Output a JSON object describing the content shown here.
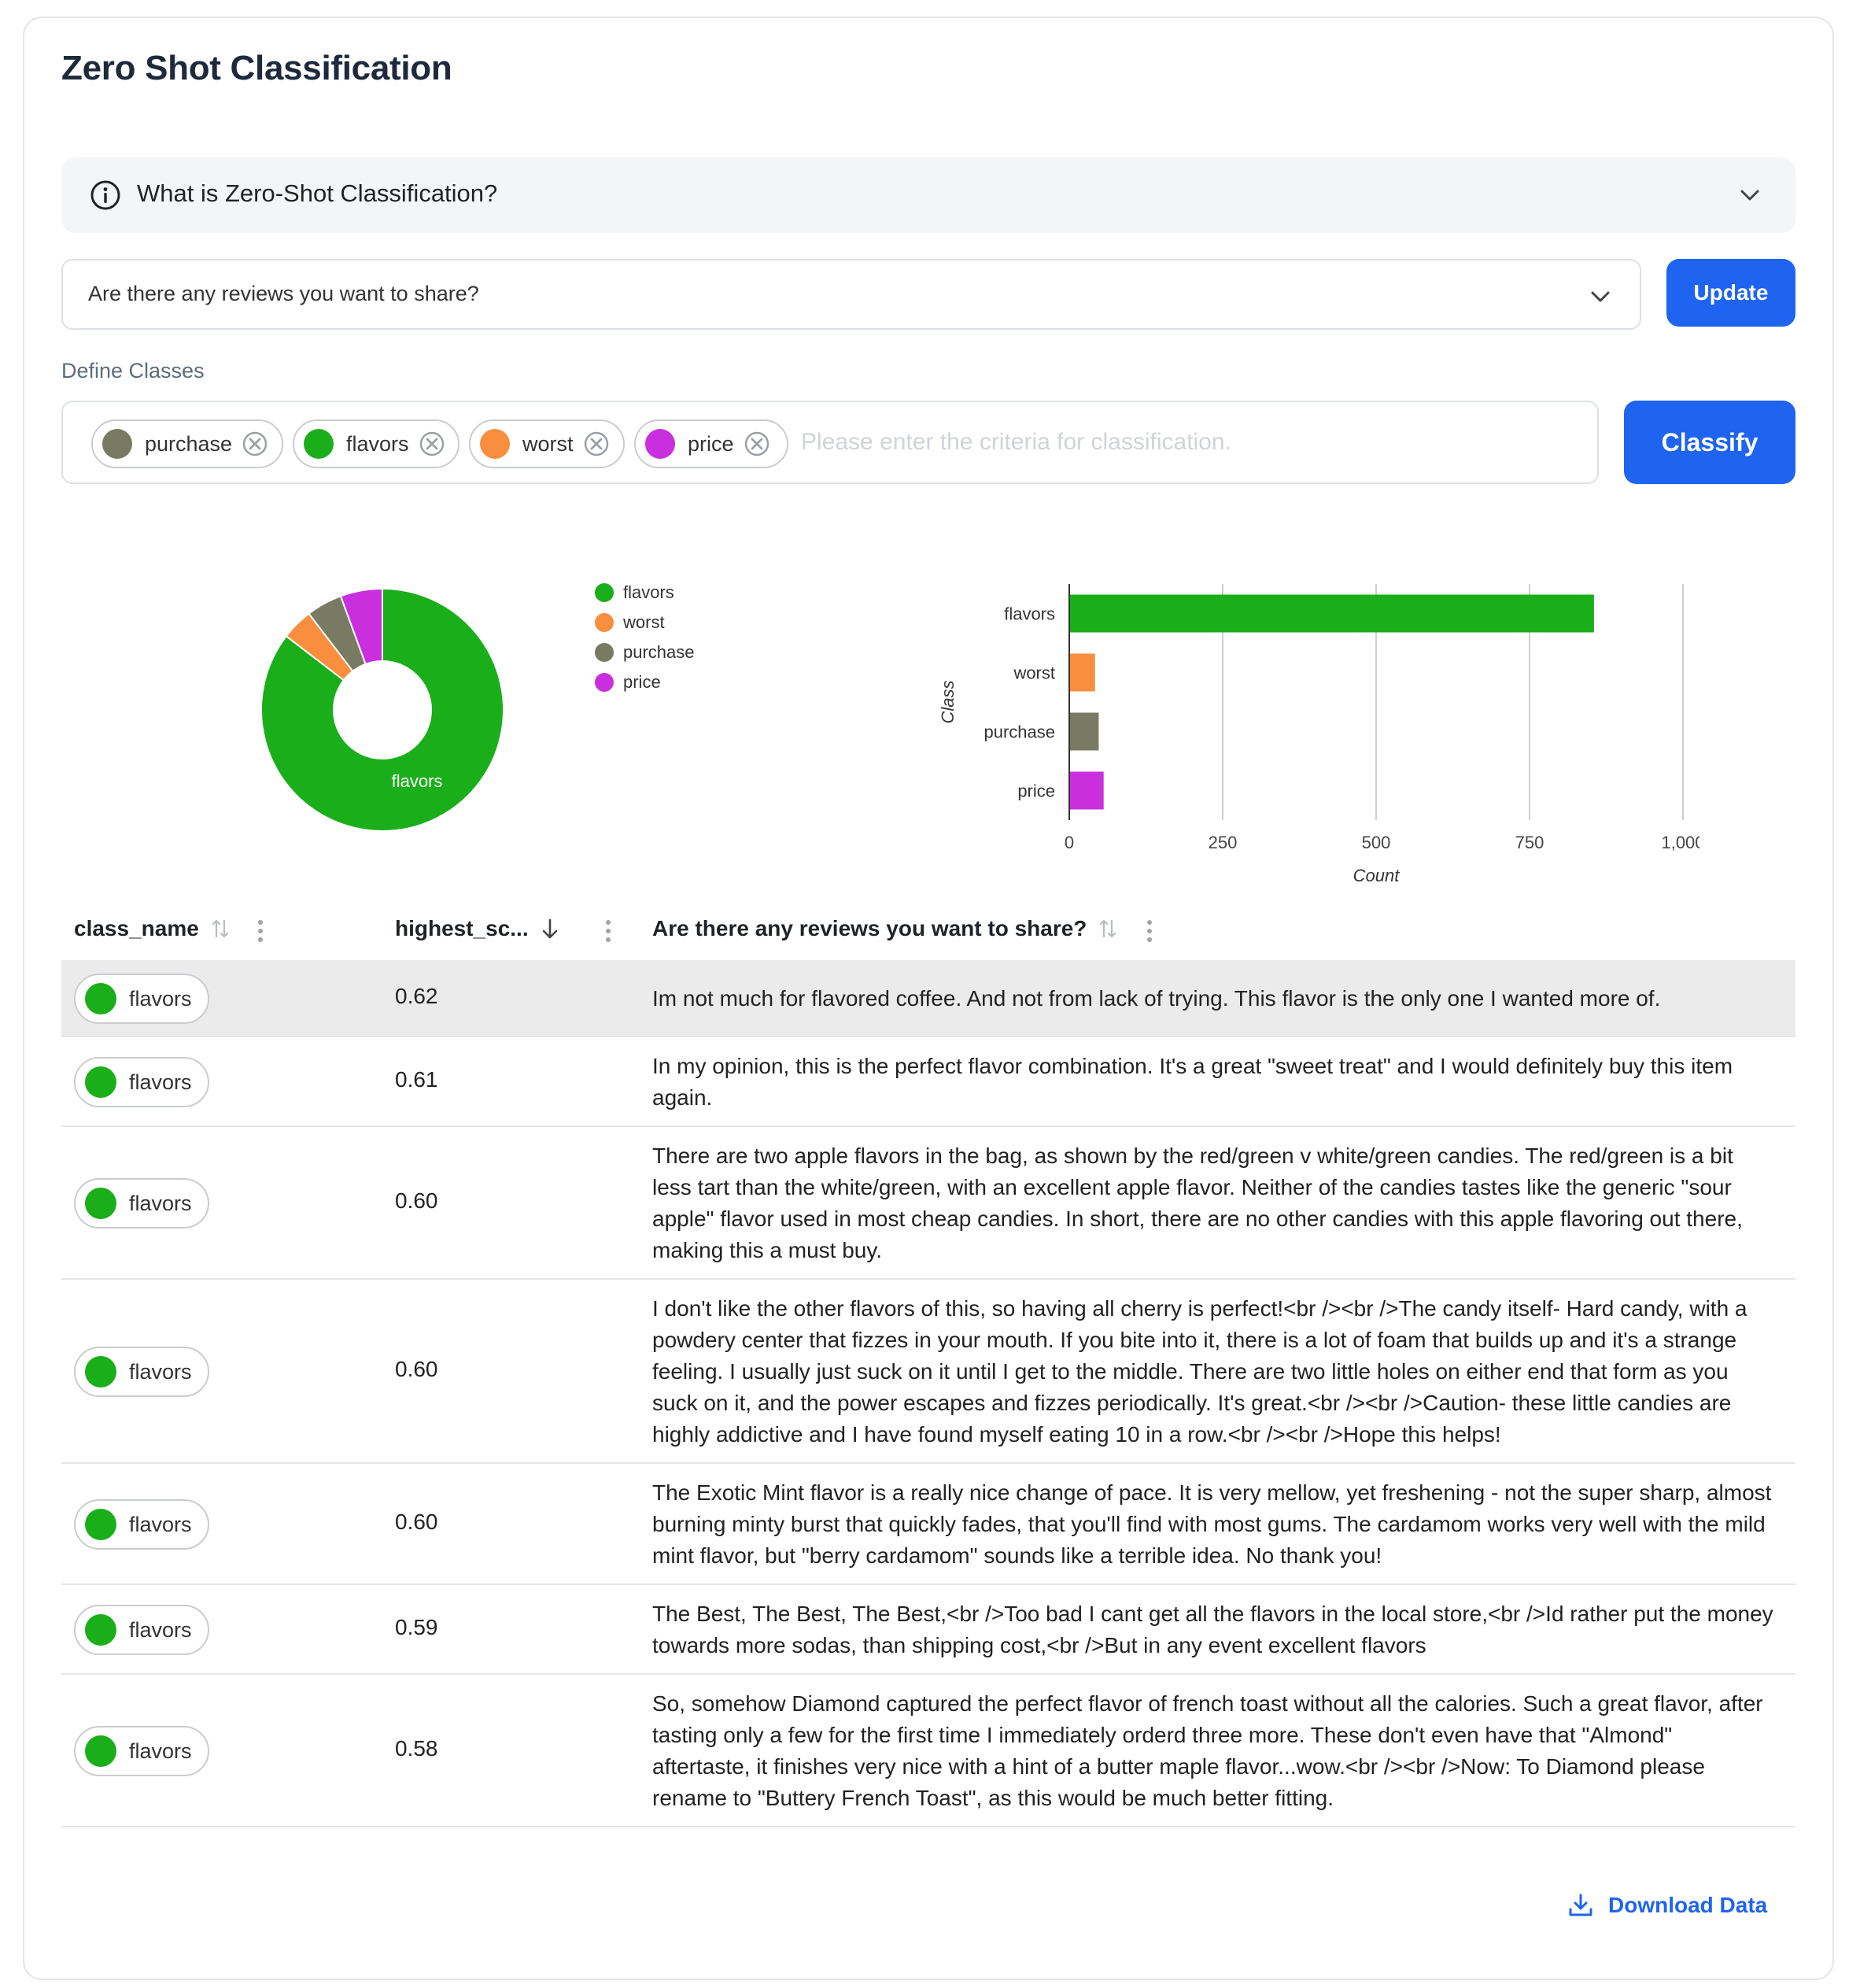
{
  "title": "Zero Shot Classification",
  "accordion": {
    "label": "What is Zero-Shot Classification?",
    "info_icon": "info-icon",
    "chevron_icon": "chevron-down-icon"
  },
  "question_select": {
    "value": "Are there any reviews you want to share?",
    "chevron_icon": "chevron-down-icon"
  },
  "update_button": {
    "label": "Update"
  },
  "define_classes": {
    "label": "Define Classes",
    "tags": [
      {
        "label": "purchase",
        "color": "#787a63"
      },
      {
        "label": "flavors",
        "color": "#1aaf1a"
      },
      {
        "label": "worst",
        "color": "#f98e3e"
      },
      {
        "label": "price",
        "color": "#c92fdc"
      }
    ],
    "placeholder": "Please enter the criteria for classification.",
    "close_icon": "close-circle-icon"
  },
  "classify_button": {
    "label": "Classify"
  },
  "chart_data": [
    {
      "type": "pie",
      "donut": true,
      "slice_label": "flavors",
      "legend_position": "right",
      "categories": [
        "flavors",
        "worst",
        "purchase",
        "price"
      ],
      "values": [
        855,
        42,
        48,
        56
      ],
      "colors": [
        "#1aaf1a",
        "#f98e3e",
        "#787a63",
        "#c92fdc"
      ]
    },
    {
      "type": "bar",
      "orientation": "horizontal",
      "categories": [
        "flavors",
        "worst",
        "purchase",
        "price"
      ],
      "values": [
        855,
        42,
        48,
        56
      ],
      "colors": [
        "#1aaf1a",
        "#f98e3e",
        "#787a63",
        "#c92fdc"
      ],
      "xlabel": "Count",
      "ylabel": "Class",
      "xticks": [
        "0",
        "250",
        "500",
        "750",
        "1,000"
      ],
      "xlim": [
        0,
        1000
      ],
      "grid": true
    }
  ],
  "table": {
    "columns": [
      {
        "label": "class_name",
        "sort_icon": "sort-icon",
        "menu_icon": "more-vertical-icon"
      },
      {
        "label": "highest_sc...",
        "sort_icon": "sort-descending-icon",
        "menu_icon": "more-vertical-icon"
      },
      {
        "label": "Are there any reviews you want to share?",
        "sort_icon": "sort-icon",
        "menu_icon": "more-vertical-icon"
      }
    ],
    "rows": [
      {
        "class_name": "flavors",
        "score": "0.62",
        "review": "Im not much for flavored coffee. And not from lack of trying. This flavor is the only one I wanted more of."
      },
      {
        "class_name": "flavors",
        "score": "0.61",
        "review": "In my opinion, this is the perfect flavor combination. It's a great \"sweet treat\" and I would definitely buy this item again."
      },
      {
        "class_name": "flavors",
        "score": "0.60",
        "review": "There are two apple flavors in the bag, as shown by the red/green v white/green candies. The red/green is a bit less tart than the white/green, with an excellent apple flavor. Neither of the candies tastes like the generic \"sour apple\" flavor used in most cheap candies. In short, there are no other candies with this apple flavoring out there, making this a must buy."
      },
      {
        "class_name": "flavors",
        "score": "0.60",
        "review": "I don't like the other flavors of this, so having all cherry is perfect!<br /><br />The candy itself- Hard candy, with a powdery center that fizzes in your mouth. If you bite into it, there is a lot of foam that builds up and it's a strange feeling. I usually just suck on it until I get to the middle. There are two little holes on either end that form as you suck on it, and the power escapes and fizzes periodically. It's great.<br /><br />Caution- these little candies are highly addictive and I have found myself eating 10 in a row.<br /><br />Hope this helps!"
      },
      {
        "class_name": "flavors",
        "score": "0.60",
        "review": "The Exotic Mint flavor is a really nice change of pace. It is very mellow, yet freshening - not the super sharp, almost burning minty burst that quickly fades, that you'll find with most gums. The cardamom works very well with the mild mint flavor, but \"berry cardamom\" sounds like a terrible idea. No thank you!"
      },
      {
        "class_name": "flavors",
        "score": "0.59",
        "review": "The Best, The Best, The Best,<br />Too bad I cant get all the flavors in the local store,<br />Id rather put the money towards more sodas, than shipping cost,<br />But in any event excellent flavors"
      },
      {
        "class_name": "flavors",
        "score": "0.58",
        "review": "So, somehow Diamond captured the perfect flavor of french toast without all the calories. Such a great flavor, after tasting only a few for the first time I immediately orderd three more. These don't even have that \"Almond\" aftertaste, it finishes very nice with a hint of a butter maple flavor...wow.<br /><br />Now: To Diamond please rename to \"Buttery French Toast\", as this would be much better fitting."
      }
    ]
  },
  "download": {
    "label": "Download Data",
    "icon": "download-icon"
  }
}
